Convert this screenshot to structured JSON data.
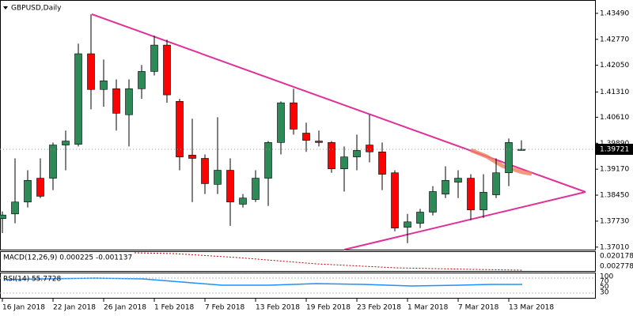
{
  "chart_data": {
    "type": "candlestick",
    "title": "GBPUSD,Daily",
    "categories": [
      "16 Jan 2018",
      null,
      null,
      null,
      "22 Jan 2018",
      null,
      null,
      null,
      "26 Jan 2018",
      null,
      null,
      null,
      "1 Feb 2018",
      null,
      null,
      null,
      "7 Feb 2018",
      null,
      null,
      null,
      "13 Feb 2018",
      null,
      null,
      null,
      "19 Feb 2018",
      null,
      null,
      null,
      "23 Feb 2018",
      null,
      null,
      null,
      "1 Mar 2018",
      null,
      null,
      null,
      "7 Mar 2018",
      null,
      null,
      null,
      "13 Mar 2018",
      null
    ],
    "open": [
      1.378,
      1.3793,
      1.3826,
      1.3892,
      1.3892,
      1.3984,
      1.3986,
      1.4237,
      1.4138,
      1.414,
      1.4068,
      1.414,
      1.4188,
      1.4261,
      1.4105,
      1.3956,
      1.3947,
      1.3875,
      1.3914,
      1.382,
      1.3833,
      1.3892,
      1.3991,
      1.4101,
      1.4017,
      1.3995,
      1.3991,
      1.3918,
      1.3951,
      1.3984,
      1.3965,
      1.3907,
      1.3756,
      1.3767,
      1.3798,
      1.3848,
      1.3881,
      1.3892,
      1.3804,
      1.3846,
      1.3907,
      1.3969
    ],
    "high": [
      1.38,
      1.3947,
      1.3914,
      1.3947,
      1.3991,
      1.4024,
      1.4265,
      1.4346,
      1.4221,
      1.4166,
      1.4166,
      1.4206,
      1.4287,
      1.4276,
      1.4112,
      1.4057,
      1.3958,
      1.4061,
      1.3947,
      1.3848,
      1.3914,
      1.3995,
      1.4105,
      1.414,
      1.4046,
      1.4024,
      1.3995,
      1.398,
      1.4013,
      1.4068,
      1.3991,
      1.3914,
      1.3793,
      1.3807,
      1.387,
      1.3925,
      1.3914,
      1.3903,
      1.3903,
      1.3947,
      1.4002,
      1.3997
    ],
    "low": [
      1.374,
      1.3767,
      1.3811,
      1.3837,
      1.3859,
      1.3914,
      1.398,
      1.4083,
      1.409,
      1.4024,
      1.398,
      1.4112,
      1.4177,
      1.4101,
      1.3914,
      1.3826,
      1.3848,
      1.3848,
      1.376,
      1.3811,
      1.3826,
      1.3815,
      1.3958,
      1.4013,
      1.3965,
      1.398,
      1.3907,
      1.3855,
      1.3914,
      1.3936,
      1.3859,
      1.3745,
      1.3712,
      1.3754,
      1.3789,
      1.3837,
      1.3837,
      1.3776,
      1.3782,
      1.3837,
      1.387,
      1.3969
    ],
    "close": [
      1.379,
      1.3826,
      1.3886,
      1.3842,
      1.3984,
      1.3995,
      1.4237,
      1.4138,
      1.4162,
      1.4072,
      1.414,
      1.4188,
      1.4261,
      1.4123,
      1.3951,
      1.3947,
      1.3877,
      1.3914,
      1.3826,
      1.3837,
      1.3892,
      1.3991,
      1.4101,
      1.4028,
      1.3997,
      1.3991,
      1.3918,
      1.3951,
      1.3969,
      1.3965,
      1.3903,
      1.3754,
      1.3771,
      1.3798,
      1.3855,
      1.3886,
      1.3892,
      1.3804,
      1.3853,
      1.3907,
      1.3991,
      1.39721
    ],
    "up_color": "#2e8b57",
    "down_color": "#ff0000",
    "last_price": 1.39721,
    "ylim": [
      1.3694,
      1.4386
    ],
    "yticks": [
      {
        "value": 1.4349,
        "label": "1.43490"
      },
      {
        "value": 1.4277,
        "label": "1.42770"
      },
      {
        "value": 1.4205,
        "label": "1.42050"
      },
      {
        "value": 1.4131,
        "label": "1.41310"
      },
      {
        "value": 1.4061,
        "label": "1.40610"
      },
      {
        "value": 1.3989,
        "label": "1.39890"
      },
      {
        "value": 1.3917,
        "label": "1.39170"
      },
      {
        "value": 1.3845,
        "label": "1.38450"
      },
      {
        "value": 1.3773,
        "label": "1.37730"
      },
      {
        "value": 1.3701,
        "label": "1.37010"
      }
    ],
    "grid": false
  },
  "macd": {
    "label": "MACD(12,26,9) 0.000225 -0.001137",
    "axis_labels": [
      "0.020178",
      "0.002778"
    ]
  },
  "rsi": {
    "label": "RSI(14) 55.7728",
    "axis_labels": [
      "100",
      "70",
      "50",
      "30"
    ]
  }
}
